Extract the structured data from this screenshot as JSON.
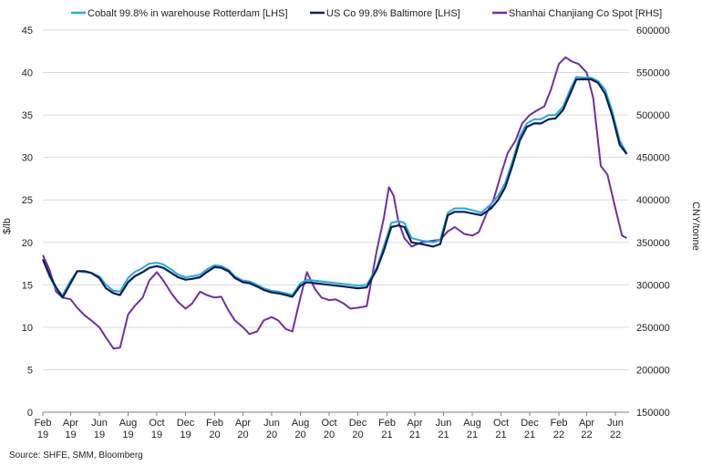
{
  "chart_data": {
    "type": "line",
    "title": "",
    "ylabel_left": "$/lb",
    "ylabel_right": "CNY/tonne",
    "ylim_left": [
      0,
      45
    ],
    "ylim_right": [
      150000,
      600000
    ],
    "y_ticks_left": [
      "0",
      "5",
      "10",
      "15",
      "20",
      "25",
      "30",
      "35",
      "40",
      "45"
    ],
    "y_ticks_right": [
      "150000",
      "200000",
      "250000",
      "300000",
      "350000",
      "400000",
      "450000",
      "500000",
      "550000",
      "600000"
    ],
    "x_ticks": [
      {
        "month": "Feb",
        "year": "19"
      },
      {
        "month": "Apr",
        "year": "19"
      },
      {
        "month": "Jun",
        "year": "19"
      },
      {
        "month": "Aug",
        "year": "19"
      },
      {
        "month": "Oct",
        "year": "19"
      },
      {
        "month": "Dec",
        "year": "19"
      },
      {
        "month": "Feb",
        "year": "20"
      },
      {
        "month": "Apr",
        "year": "20"
      },
      {
        "month": "Jun",
        "year": "20"
      },
      {
        "month": "Aug",
        "year": "20"
      },
      {
        "month": "Oct",
        "year": "20"
      },
      {
        "month": "Dec",
        "year": "20"
      },
      {
        "month": "Feb",
        "year": "21"
      },
      {
        "month": "Apr",
        "year": "21"
      },
      {
        "month": "Jun",
        "year": "21"
      },
      {
        "month": "Aug",
        "year": "21"
      },
      {
        "month": "Oct",
        "year": "21"
      },
      {
        "month": "Dec",
        "year": "21"
      },
      {
        "month": "Feb",
        "year": "22"
      },
      {
        "month": "Apr",
        "year": "22"
      },
      {
        "month": "Jun",
        "year": "22"
      }
    ],
    "x_range": [
      "2019-02-01",
      "2022-06-30"
    ],
    "grid": true,
    "legend_position": "top",
    "series": [
      {
        "name": "Cobalt 99.8% in warehouse Rotterdam [LHS]",
        "axis": "left",
        "color": "#29a8e0",
        "points": [
          [
            "2019-02-01",
            18.0
          ],
          [
            "2019-02-15",
            16.0
          ],
          [
            "2019-03-01",
            14.5
          ],
          [
            "2019-03-15",
            13.8
          ],
          [
            "2019-04-01",
            15.5
          ],
          [
            "2019-04-15",
            16.6
          ],
          [
            "2019-05-01",
            16.5
          ],
          [
            "2019-05-15",
            16.4
          ],
          [
            "2019-06-01",
            16.0
          ],
          [
            "2019-06-15",
            15.0
          ],
          [
            "2019-07-01",
            14.3
          ],
          [
            "2019-07-15",
            14.2
          ],
          [
            "2019-08-01",
            15.8
          ],
          [
            "2019-08-15",
            16.5
          ],
          [
            "2019-09-01",
            17.0
          ],
          [
            "2019-09-15",
            17.5
          ],
          [
            "2019-10-01",
            17.6
          ],
          [
            "2019-10-15",
            17.4
          ],
          [
            "2019-11-01",
            16.8
          ],
          [
            "2019-11-15",
            16.2
          ],
          [
            "2019-12-01",
            15.9
          ],
          [
            "2019-12-15",
            16.0
          ],
          [
            "2020-01-01",
            16.2
          ],
          [
            "2020-01-15",
            16.8
          ],
          [
            "2020-02-01",
            17.3
          ],
          [
            "2020-02-15",
            17.2
          ],
          [
            "2020-03-01",
            16.8
          ],
          [
            "2020-03-15",
            16.0
          ],
          [
            "2020-04-01",
            15.5
          ],
          [
            "2020-04-15",
            15.4
          ],
          [
            "2020-05-01",
            15.0
          ],
          [
            "2020-05-15",
            14.6
          ],
          [
            "2020-06-01",
            14.3
          ],
          [
            "2020-06-15",
            14.2
          ],
          [
            "2020-07-01",
            14.0
          ],
          [
            "2020-07-15",
            13.8
          ],
          [
            "2020-08-01",
            15.2
          ],
          [
            "2020-08-15",
            15.6
          ],
          [
            "2020-09-01",
            15.5
          ],
          [
            "2020-10-01",
            15.3
          ],
          [
            "2020-11-01",
            15.1
          ],
          [
            "2020-12-01",
            14.9
          ],
          [
            "2020-12-20",
            15.0
          ],
          [
            "2021-01-10",
            17.0
          ],
          [
            "2021-01-25",
            19.5
          ],
          [
            "2021-02-10",
            22.3
          ],
          [
            "2021-02-25",
            22.5
          ],
          [
            "2021-03-10",
            22.3
          ],
          [
            "2021-03-25",
            20.5
          ],
          [
            "2021-04-15",
            20.2
          ],
          [
            "2021-05-10",
            20.0
          ],
          [
            "2021-05-25",
            20.3
          ],
          [
            "2021-06-10",
            23.5
          ],
          [
            "2021-06-25",
            24.0
          ],
          [
            "2021-07-15",
            24.0
          ],
          [
            "2021-08-01",
            23.8
          ],
          [
            "2021-08-20",
            23.5
          ],
          [
            "2021-09-10",
            24.5
          ],
          [
            "2021-09-25",
            25.5
          ],
          [
            "2021-10-10",
            27.0
          ],
          [
            "2021-10-25",
            29.5
          ],
          [
            "2021-11-10",
            32.5
          ],
          [
            "2021-11-25",
            34.0
          ],
          [
            "2021-12-10",
            34.5
          ],
          [
            "2021-12-25",
            34.5
          ],
          [
            "2022-01-10",
            35.0
          ],
          [
            "2022-01-25",
            35.0
          ],
          [
            "2022-02-10",
            36.0
          ],
          [
            "2022-02-25",
            38.0
          ],
          [
            "2022-03-10",
            39.5
          ],
          [
            "2022-03-25",
            39.4
          ],
          [
            "2022-04-10",
            39.4
          ],
          [
            "2022-04-25",
            39.0
          ],
          [
            "2022-05-10",
            38.0
          ],
          [
            "2022-05-25",
            35.5
          ],
          [
            "2022-06-10",
            32.0
          ],
          [
            "2022-06-25",
            30.5
          ]
        ]
      },
      {
        "name": "US Co 99.8% Baltimore [LHS]",
        "axis": "left",
        "color": "#0b1f51",
        "points": [
          [
            "2019-02-01",
            18.0
          ],
          [
            "2019-02-15",
            16.2
          ],
          [
            "2019-03-01",
            14.7
          ],
          [
            "2019-03-15",
            13.5
          ],
          [
            "2019-04-01",
            15.2
          ],
          [
            "2019-04-15",
            16.6
          ],
          [
            "2019-05-01",
            16.6
          ],
          [
            "2019-05-15",
            16.4
          ],
          [
            "2019-06-01",
            15.8
          ],
          [
            "2019-06-15",
            14.6
          ],
          [
            "2019-07-01",
            14.0
          ],
          [
            "2019-07-15",
            13.8
          ],
          [
            "2019-08-01",
            15.3
          ],
          [
            "2019-08-15",
            16.0
          ],
          [
            "2019-09-01",
            16.5
          ],
          [
            "2019-09-15",
            17.0
          ],
          [
            "2019-10-01",
            17.2
          ],
          [
            "2019-10-15",
            17.0
          ],
          [
            "2019-11-01",
            16.4
          ],
          [
            "2019-11-15",
            15.9
          ],
          [
            "2019-12-01",
            15.6
          ],
          [
            "2019-12-15",
            15.7
          ],
          [
            "2020-01-01",
            15.9
          ],
          [
            "2020-01-15",
            16.5
          ],
          [
            "2020-02-01",
            17.1
          ],
          [
            "2020-02-15",
            17.0
          ],
          [
            "2020-03-01",
            16.6
          ],
          [
            "2020-03-15",
            15.8
          ],
          [
            "2020-04-01",
            15.3
          ],
          [
            "2020-04-15",
            15.2
          ],
          [
            "2020-05-01",
            14.8
          ],
          [
            "2020-05-15",
            14.4
          ],
          [
            "2020-06-01",
            14.1
          ],
          [
            "2020-06-15",
            14.0
          ],
          [
            "2020-07-01",
            13.8
          ],
          [
            "2020-07-15",
            13.6
          ],
          [
            "2020-08-01",
            14.9
          ],
          [
            "2020-08-15",
            15.3
          ],
          [
            "2020-09-01",
            15.2
          ],
          [
            "2020-10-01",
            15.0
          ],
          [
            "2020-11-01",
            14.8
          ],
          [
            "2020-12-01",
            14.6
          ],
          [
            "2020-12-20",
            14.7
          ],
          [
            "2021-01-10",
            16.8
          ],
          [
            "2021-01-25",
            19.0
          ],
          [
            "2021-02-10",
            21.8
          ],
          [
            "2021-02-25",
            22.0
          ],
          [
            "2021-03-10",
            21.8
          ],
          [
            "2021-03-25",
            20.0
          ],
          [
            "2021-04-15",
            19.8
          ],
          [
            "2021-05-10",
            19.5
          ],
          [
            "2021-05-25",
            19.8
          ],
          [
            "2021-06-10",
            23.2
          ],
          [
            "2021-06-25",
            23.6
          ],
          [
            "2021-07-15",
            23.6
          ],
          [
            "2021-08-01",
            23.4
          ],
          [
            "2021-08-20",
            23.2
          ],
          [
            "2021-09-10",
            24.0
          ],
          [
            "2021-09-25",
            25.0
          ],
          [
            "2021-10-10",
            26.5
          ],
          [
            "2021-10-25",
            29.0
          ],
          [
            "2021-11-10",
            32.0
          ],
          [
            "2021-11-25",
            33.6
          ],
          [
            "2021-12-10",
            34.0
          ],
          [
            "2021-12-25",
            34.0
          ],
          [
            "2022-01-10",
            34.5
          ],
          [
            "2022-01-25",
            34.6
          ],
          [
            "2022-02-10",
            35.6
          ],
          [
            "2022-02-25",
            37.5
          ],
          [
            "2022-03-10",
            39.2
          ],
          [
            "2022-03-25",
            39.2
          ],
          [
            "2022-04-10",
            39.2
          ],
          [
            "2022-04-25",
            38.8
          ],
          [
            "2022-05-10",
            37.5
          ],
          [
            "2022-05-25",
            35.0
          ],
          [
            "2022-06-10",
            31.5
          ],
          [
            "2022-06-25",
            30.4
          ]
        ]
      },
      {
        "name": "Shanhai Chanjiang Co Spot [RHS]",
        "axis": "right",
        "color": "#7030a0",
        "points": [
          [
            "2019-02-01",
            335000
          ],
          [
            "2019-02-15",
            318000
          ],
          [
            "2019-03-01",
            292000
          ],
          [
            "2019-03-15",
            285000
          ],
          [
            "2019-04-01",
            283000
          ],
          [
            "2019-04-15",
            273000
          ],
          [
            "2019-05-01",
            264000
          ],
          [
            "2019-05-15",
            258000
          ],
          [
            "2019-06-01",
            250000
          ],
          [
            "2019-06-15",
            238000
          ],
          [
            "2019-07-01",
            225000
          ],
          [
            "2019-07-15",
            226000
          ],
          [
            "2019-08-01",
            265000
          ],
          [
            "2019-08-15",
            275000
          ],
          [
            "2019-09-01",
            285000
          ],
          [
            "2019-09-15",
            305000
          ],
          [
            "2019-10-01",
            315000
          ],
          [
            "2019-10-15",
            305000
          ],
          [
            "2019-11-01",
            290000
          ],
          [
            "2019-11-15",
            280000
          ],
          [
            "2019-12-01",
            272000
          ],
          [
            "2019-12-15",
            278000
          ],
          [
            "2020-01-01",
            292000
          ],
          [
            "2020-01-15",
            288000
          ],
          [
            "2020-02-01",
            285000
          ],
          [
            "2020-02-15",
            286000
          ],
          [
            "2020-03-01",
            270000
          ],
          [
            "2020-03-15",
            258000
          ],
          [
            "2020-04-01",
            250000
          ],
          [
            "2020-04-15",
            242000
          ],
          [
            "2020-05-01",
            245000
          ],
          [
            "2020-05-15",
            258000
          ],
          [
            "2020-06-01",
            262000
          ],
          [
            "2020-06-15",
            258000
          ],
          [
            "2020-07-01",
            248000
          ],
          [
            "2020-07-15",
            245000
          ],
          [
            "2020-08-01",
            285000
          ],
          [
            "2020-08-15",
            315000
          ],
          [
            "2020-09-01",
            295000
          ],
          [
            "2020-09-15",
            285000
          ],
          [
            "2020-10-01",
            282000
          ],
          [
            "2020-10-15",
            283000
          ],
          [
            "2020-11-01",
            278000
          ],
          [
            "2020-11-15",
            272000
          ],
          [
            "2020-12-01",
            273000
          ],
          [
            "2020-12-20",
            275000
          ],
          [
            "2021-01-10",
            340000
          ],
          [
            "2021-01-25",
            378000
          ],
          [
            "2021-02-05",
            415000
          ],
          [
            "2021-02-15",
            405000
          ],
          [
            "2021-02-25",
            375000
          ],
          [
            "2021-03-10",
            355000
          ],
          [
            "2021-03-25",
            345000
          ],
          [
            "2021-04-15",
            350000
          ],
          [
            "2021-05-10",
            352000
          ],
          [
            "2021-05-25",
            353000
          ],
          [
            "2021-06-10",
            363000
          ],
          [
            "2021-06-25",
            368000
          ],
          [
            "2021-07-15",
            360000
          ],
          [
            "2021-08-01",
            358000
          ],
          [
            "2021-08-15",
            362000
          ],
          [
            "2021-09-01",
            385000
          ],
          [
            "2021-09-15",
            400000
          ],
          [
            "2021-10-01",
            430000
          ],
          [
            "2021-10-15",
            455000
          ],
          [
            "2021-11-01",
            470000
          ],
          [
            "2021-11-15",
            490000
          ],
          [
            "2021-12-01",
            500000
          ],
          [
            "2021-12-15",
            505000
          ],
          [
            "2022-01-01",
            510000
          ],
          [
            "2022-01-15",
            530000
          ],
          [
            "2022-02-01",
            560000
          ],
          [
            "2022-02-15",
            568000
          ],
          [
            "2022-03-01",
            563000
          ],
          [
            "2022-03-15",
            560000
          ],
          [
            "2022-04-01",
            550000
          ],
          [
            "2022-04-15",
            520000
          ],
          [
            "2022-05-01",
            440000
          ],
          [
            "2022-05-15",
            430000
          ],
          [
            "2022-06-01",
            390000
          ],
          [
            "2022-06-15",
            358000
          ],
          [
            "2022-06-25",
            355000
          ]
        ]
      }
    ]
  },
  "footer": {
    "source": "Source: SHFE, SMM, Bloomberg"
  }
}
